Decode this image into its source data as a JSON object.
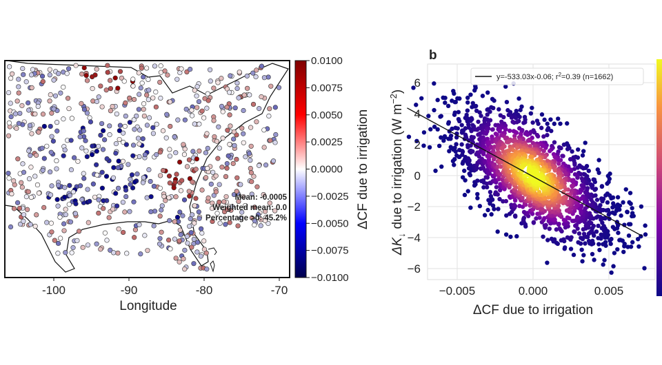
{
  "chart_data": [
    {
      "type": "scatter",
      "panel": "map",
      "xlabel": "Longitude",
      "x_ticks": [
        "-100",
        "-90",
        "-80",
        "-70"
      ],
      "x_tick_values": [
        -100,
        -90,
        -80,
        -70
      ],
      "xlim": [
        -108,
        -66
      ],
      "colorbar": {
        "label": "ΔCF due to irrigation",
        "range": [
          -0.01,
          0.01
        ],
        "ticks": [
          "0.0100",
          "0.0075",
          "0.0050",
          "0.0025",
          "0.0000",
          "−0.0025",
          "−0.0050",
          "−0.0075",
          "−0.0100"
        ],
        "tick_values": [
          0.01,
          0.0075,
          0.005,
          0.0025,
          0,
          -0.0025,
          -0.005,
          -0.0075,
          -0.01
        ],
        "colormap": "seismic",
        "colors": {
          "low": "#00006e",
          "mid": "#ffffff",
          "high": "#7a0000"
        }
      },
      "annotations": [
        "Mean: -0.0005",
        "Weighted mean: 0.0",
        "Percentage >0: 45.2%"
      ]
    },
    {
      "type": "scatter",
      "panel_label": "b",
      "xlabel": "ΔCF due to irrigation",
      "ylabel_main": "ΔK",
      "ylabel_sub": "↓",
      "ylabel_rest": " due to irrigation (W m",
      "ylabel_sup": "−2",
      "ylabel_end": ")",
      "x_ticks": [
        "−0.005",
        "0.000",
        "0.005"
      ],
      "x_tick_values": [
        -0.005,
        0,
        0.005
      ],
      "y_ticks": [
        "6",
        "4",
        "2",
        "0",
        "−2",
        "−4",
        "−6"
      ],
      "y_tick_values": [
        6,
        4,
        2,
        0,
        -2,
        -4,
        -6
      ],
      "xlim": [
        -0.009,
        0.0075
      ],
      "ylim": [
        -6.8,
        7.2
      ],
      "grid": true,
      "regression": {
        "slope": -533.03,
        "intercept": -0.06,
        "r2": 0.39,
        "n": 1662,
        "x_range": [
          -0.0083,
          0.0072
        ]
      },
      "legend": {
        "placement": "top-right",
        "text_pre": "y=-533.03x-0.06; r",
        "text_sup": "2",
        "text_post": "=0.39 (n=1662)"
      },
      "colormap": "plasma",
      "colors": {
        "low": "#2a0593",
        "high": "#f5f531"
      }
    }
  ]
}
